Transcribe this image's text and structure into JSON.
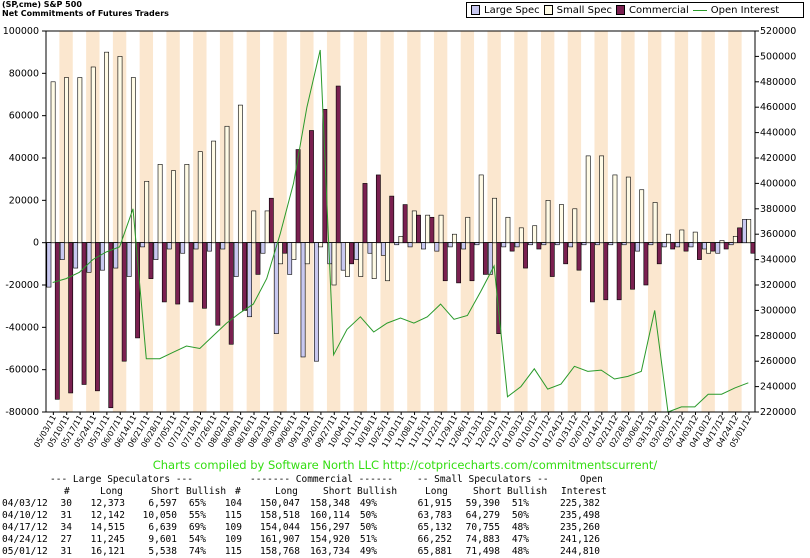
{
  "header": {
    "line1": "(SP,cme) S&P 500",
    "line2": "Net Commitments of Futures Traders"
  },
  "legend": [
    {
      "label": "Large Spec",
      "color": "#c8c8f0"
    },
    {
      "label": "Small Spec",
      "color": "#fffbe6"
    },
    {
      "label": "Commercial",
      "color": "#7a2050"
    },
    {
      "label": "Open Interest",
      "color": "#2a9a2a"
    }
  ],
  "colors": {
    "band": "#fbe7cf",
    "large": "#c8c8f0",
    "small": "#fffbe6",
    "comm": "#7a2050",
    "oi": "#2a9a2a"
  },
  "chart_data": {
    "type": "bar",
    "left_axis": {
      "min": -80000,
      "max": 100000,
      "ticks": [
        "100000",
        "80000",
        "60000",
        "40000",
        "20000",
        "0",
        "-20000",
        "-40000",
        "-60000",
        "-80000"
      ]
    },
    "right_axis": {
      "min": 220000,
      "max": 520000,
      "ticks": [
        "520000",
        "500000",
        "480000",
        "460000",
        "440000",
        "420000",
        "400000",
        "380000",
        "360000",
        "340000",
        "320000",
        "300000",
        "280000",
        "260000",
        "240000",
        "220000"
      ]
    },
    "dates": [
      "05/03/11",
      "05/10/11",
      "05/17/11",
      "05/24/11",
      "05/31/11",
      "06/07/11",
      "06/14/11",
      "06/21/11",
      "06/28/11",
      "07/05/11",
      "07/12/11",
      "07/19/11",
      "07/26/11",
      "08/02/11",
      "08/09/11",
      "08/16/11",
      "08/23/11",
      "08/30/11",
      "09/06/11",
      "09/13/11",
      "09/20/11",
      "09/27/11",
      "10/04/11",
      "10/11/11",
      "10/18/11",
      "10/25/11",
      "11/01/11",
      "11/08/11",
      "11/15/11",
      "11/22/11",
      "11/29/11",
      "12/06/11",
      "12/13/11",
      "12/20/11",
      "12/27/11",
      "01/03/12",
      "01/10/12",
      "01/17/12",
      "01/24/12",
      "01/31/12",
      "02/07/12",
      "02/14/12",
      "02/21/12",
      "02/28/12",
      "03/06/12",
      "03/13/12",
      "03/20/12",
      "03/27/12",
      "04/03/12",
      "04/10/12",
      "04/17/12",
      "04/24/12",
      "05/01/12"
    ],
    "tick_labels": [
      "05/03/11",
      "05/10/11",
      "05/17/11",
      "05/24/11",
      "05/31/11",
      "06/07/11",
      "06/14/11",
      "06/21/11",
      "06/28/11",
      "07/05/11",
      "07/12/11",
      "07/19/11",
      "07/26/11",
      "08/02/11",
      "08/09/11",
      "08/16/11",
      "08/23/11",
      "08/30/11",
      "09/06/11",
      "09/13/11",
      "09/20/11",
      "09/27/11",
      "10/04/11",
      "10/11/11",
      "10/18/11",
      "10/25/11",
      "11/01/11",
      "11/08/11",
      "11/15/11",
      "11/22/11",
      "11/29/11",
      "12/06/11",
      "12/13/11",
      "12/20/11",
      "12/27/11",
      "01/03/12",
      "01/10/12",
      "01/17/12",
      "01/24/12",
      "01/31/12",
      "02/07/12",
      "02/14/12",
      "02/21/12",
      "02/28/12",
      "03/06/12",
      "03/13/12",
      "03/20/12",
      "03/27/12",
      "04/03/12",
      "04/10/12",
      "04/17/12",
      "04/24/12",
      "05/01/12"
    ],
    "series": [
      {
        "name": "Large Spec",
        "values": [
          -21000,
          -8000,
          -12000,
          -14000,
          -13000,
          -12000,
          -16000,
          -2000,
          -8000,
          -3000,
          -5000,
          -3000,
          -4000,
          -3000,
          -16000,
          -35000,
          -5000,
          -43000,
          -15000,
          -54000,
          -56000,
          -10000,
          -13000,
          -8000,
          -5000,
          -6000,
          -1000,
          -2000,
          -3000,
          -4000,
          -2000,
          -3000,
          -1000,
          -15000,
          -2000,
          -2000,
          -1000,
          -1000,
          -1000,
          -2000,
          -1000,
          -1000,
          -1000,
          -1000,
          -4000,
          -1000,
          -2000,
          -2000,
          -2000,
          -3000,
          -5000,
          -1000,
          11000
        ]
      },
      {
        "name": "Small Spec",
        "values": [
          76000,
          78000,
          78000,
          83000,
          90000,
          88000,
          78000,
          29000,
          37000,
          34000,
          37000,
          43000,
          48000,
          55000,
          65000,
          15000,
          15000,
          -10000,
          -8000,
          -10000,
          -2000,
          -20000,
          -16000,
          -16000,
          -17000,
          -18000,
          3000,
          15000,
          13000,
          13000,
          4000,
          12000,
          32000,
          21000,
          12000,
          7000,
          8000,
          20000,
          18000,
          16000,
          41000,
          41000,
          32000,
          31000,
          25000,
          19000,
          4000,
          6000,
          5000,
          -5000,
          1000,
          3000,
          11000
        ]
      },
      {
        "name": "Commercial",
        "values": [
          -74000,
          -71000,
          -67000,
          -70000,
          -78000,
          -56000,
          -45000,
          -17000,
          -28000,
          -29000,
          -28000,
          -31000,
          -39000,
          -48000,
          -32000,
          -15000,
          21000,
          -5000,
          44000,
          53000,
          63000,
          74000,
          -10000,
          28000,
          32000,
          22000,
          18000,
          13000,
          12000,
          -18000,
          -19000,
          -18000,
          -15000,
          -43000,
          -4000,
          -12000,
          -3000,
          -16000,
          -10000,
          -13000,
          -28000,
          -27000,
          -27000,
          -22000,
          -20000,
          -10000,
          -3000,
          -4000,
          -8000,
          -4000,
          -3000,
          7000,
          -5000
        ]
      },
      {
        "name": "Open Interest",
        "values": [
          322000,
          325000,
          330000,
          340000,
          346000,
          350000,
          380000,
          262000,
          262000,
          267000,
          272000,
          270000,
          280000,
          290000,
          298000,
          305000,
          325000,
          360000,
          400000,
          460000,
          505000,
          265000,
          285000,
          295000,
          283000,
          290000,
          294000,
          290000,
          295000,
          305000,
          293000,
          296000,
          315000,
          335000,
          232000,
          240000,
          254000,
          238000,
          242000,
          256000,
          252000,
          253000,
          246000,
          248000,
          252000,
          300000,
          220000,
          224000,
          224000,
          234000,
          234000,
          239000,
          243000
        ]
      }
    ],
    "bar_series": [
      "Large Spec",
      "Small Spec",
      "Commercial"
    ],
    "line_series": "Open Interest",
    "title": "",
    "xlabel": "",
    "ylabel": "",
    "grid": false,
    "legend_position": "top-right"
  },
  "credit": "Charts compiled by Software North LLC  http://cotpricecharts.com/commitmentscurrent/",
  "table": {
    "group_headers": {
      "large": "--- Large Speculators ---",
      "comm": "------- Commercial ------",
      "small": "-- Small Speculators --",
      "open": "Open"
    },
    "col_headers": {
      "num": "#",
      "long": "Long",
      "short": "Short",
      "bullish": "Bullish",
      "num2": "#",
      "long2": "Long",
      "short2": "Short",
      "bullish2": "Bullish",
      "long3": "Long",
      "short3": "Short",
      "bullish3": "Bullish",
      "oi": "Interest"
    },
    "rows": [
      {
        "date": "04/03/12",
        "lnum": "30",
        "llong": "12,373",
        "lshort": "6,597",
        "lbull": "65%",
        "cnum": "104",
        "clong": "150,047",
        "cshort": "158,348",
        "cbull": "49%",
        "slong": "61,915",
        "sshort": "59,390",
        "sbull": "51%",
        "oi": "225,382"
      },
      {
        "date": "04/10/12",
        "lnum": "31",
        "llong": "12,142",
        "lshort": "10,050",
        "lbull": "55%",
        "cnum": "115",
        "clong": "158,518",
        "cshort": "160,114",
        "cbull": "50%",
        "slong": "63,783",
        "sshort": "64,279",
        "sbull": "50%",
        "oi": "235,498"
      },
      {
        "date": "04/17/12",
        "lnum": "34",
        "llong": "14,515",
        "lshort": "6,639",
        "lbull": "69%",
        "cnum": "109",
        "clong": "154,044",
        "cshort": "156,297",
        "cbull": "50%",
        "slong": "65,132",
        "sshort": "70,755",
        "sbull": "48%",
        "oi": "235,260"
      },
      {
        "date": "04/24/12",
        "lnum": "27",
        "llong": "11,245",
        "lshort": "9,601",
        "lbull": "54%",
        "cnum": "109",
        "clong": "161,907",
        "cshort": "154,920",
        "cbull": "51%",
        "slong": "66,252",
        "sshort": "74,883",
        "sbull": "47%",
        "oi": "241,126"
      },
      {
        "date": "05/01/12",
        "lnum": "31",
        "llong": "16,121",
        "lshort": "5,538",
        "lbull": "74%",
        "cnum": "115",
        "clong": "158,768",
        "cshort": "163,734",
        "cbull": "49%",
        "slong": "65,881",
        "sshort": "71,498",
        "sbull": "48%",
        "oi": "244,810"
      }
    ]
  }
}
